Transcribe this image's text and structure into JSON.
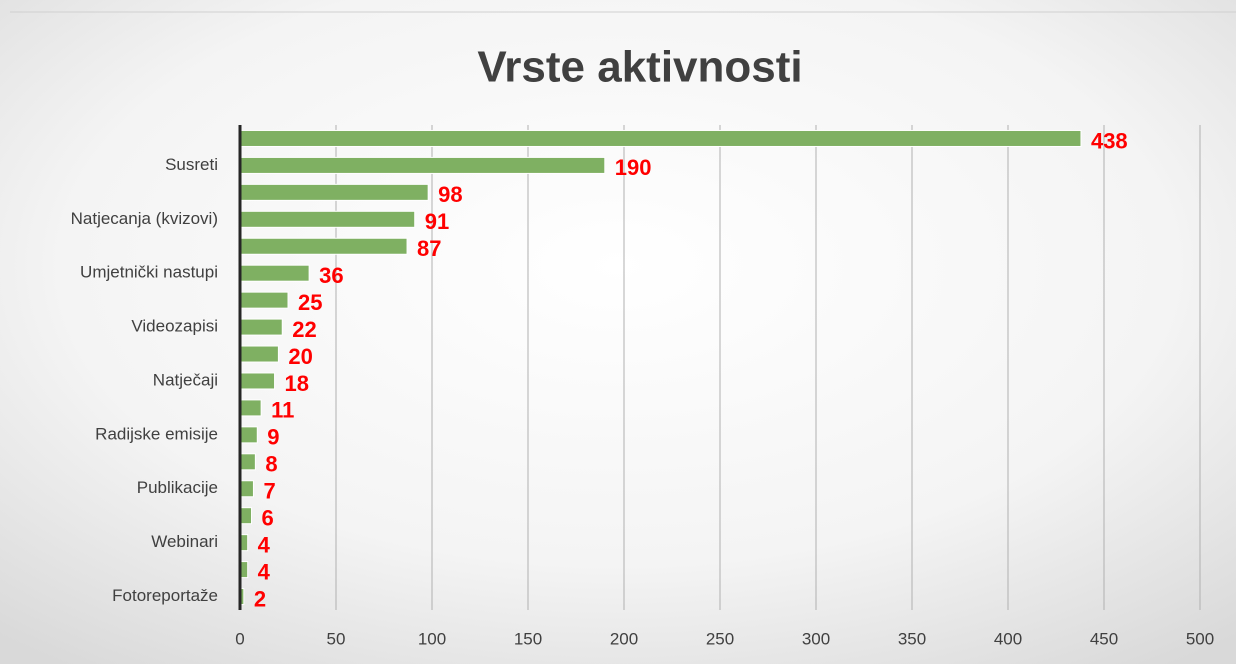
{
  "chart_data": {
    "type": "bar",
    "orientation": "horizontal",
    "title": "Vrste aktivnosti",
    "categories": [
      null,
      "Susreti",
      null,
      "Natjecanja (kvizovi)",
      null,
      "Umjetnički nastupi",
      null,
      "Videozapisi",
      null,
      "Natječaji",
      null,
      "Radijske emisije",
      null,
      "Publikacije",
      null,
      "Webinari",
      null,
      "Fotoreportaže"
    ],
    "values": [
      438,
      190,
      98,
      91,
      87,
      36,
      25,
      22,
      20,
      18,
      11,
      9,
      8,
      7,
      6,
      4,
      4,
      2
    ],
    "color": "#7fb062",
    "value_label_color": "#ff0000",
    "xlim": [
      0,
      500
    ],
    "xticks": [
      0,
      50,
      100,
      150,
      200,
      250,
      300,
      350,
      400,
      450,
      500
    ],
    "grid": true
  }
}
